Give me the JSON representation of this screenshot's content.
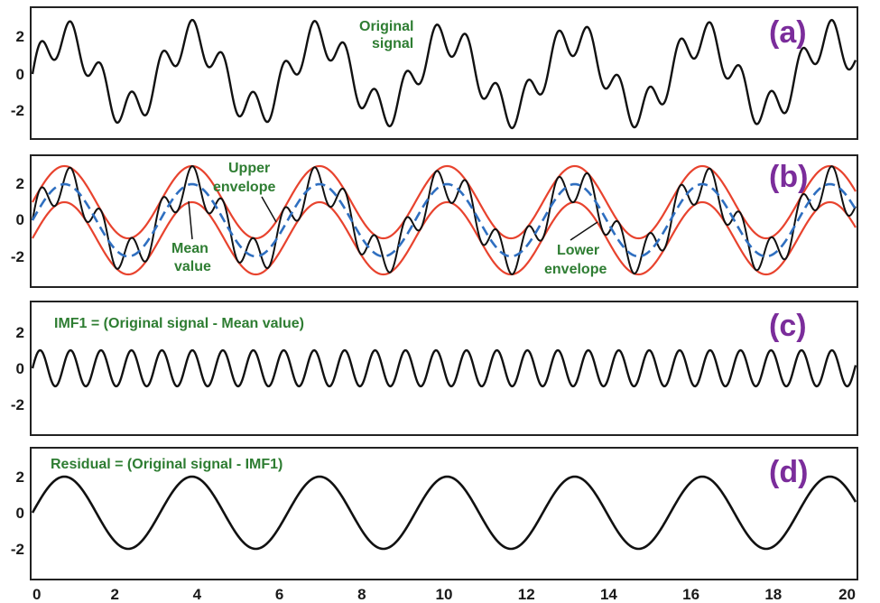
{
  "colors": {
    "signal": "#111111",
    "envelope": "#e8432e",
    "mean": "#2f6fc0",
    "annotation": "#2e7d32",
    "panel_tag": "#7b2d9b",
    "frame": "#222222"
  },
  "chart_data": [
    {
      "type": "line",
      "panel_tag": "(a)",
      "x_range": [
        0,
        20
      ],
      "ylim": [
        -3.2,
        3.3
      ],
      "y_ticks": [
        2,
        0,
        -2
      ],
      "annotations": [
        {
          "id": "orig-1",
          "text": "Original"
        },
        {
          "id": "orig-2",
          "text": "signal"
        }
      ],
      "series": [
        {
          "key": "signal",
          "formula": "2*sin(2*pi*x/3.1)+sin(2*pi*x/0.74)",
          "x_start": 0,
          "x_end": 20,
          "approx_extrema": [
            2.9,
            -2.9
          ]
        }
      ]
    },
    {
      "type": "line",
      "panel_tag": "(b)",
      "x_range": [
        0,
        20
      ],
      "ylim": [
        -3.2,
        3.3
      ],
      "y_ticks": [
        2,
        0,
        -2
      ],
      "annotations": [
        {
          "id": "upper-1",
          "text": "Upper"
        },
        {
          "id": "upper-2",
          "text": "envelope"
        },
        {
          "id": "mean-1",
          "text": "Mean"
        },
        {
          "id": "mean-2",
          "text": "value"
        },
        {
          "id": "lower-1",
          "text": "Lower"
        },
        {
          "id": "lower-2",
          "text": "envelope"
        }
      ],
      "series": [
        {
          "key": "signal",
          "formula": "2*sin(2*pi*x/3.1)+sin(2*pi*x/0.74)"
        },
        {
          "key": "upper_envelope",
          "formula": "2*sin(2*pi*x/3.1)+1",
          "style": "red"
        },
        {
          "key": "lower_envelope",
          "formula": "2*sin(2*pi*x/3.1)-1",
          "style": "red"
        },
        {
          "key": "mean_value",
          "formula": "2*sin(2*pi*x/3.1)",
          "style": "blue-dashed"
        }
      ]
    },
    {
      "type": "line",
      "panel_tag": "(c)",
      "x_range": [
        0,
        20
      ],
      "ylim": [
        -3.2,
        3.3
      ],
      "y_ticks": [
        2,
        0,
        -2
      ],
      "annotations": [
        {
          "id": "imf-eq",
          "text": "IMF1 = (Original signal - Mean value)"
        }
      ],
      "series": [
        {
          "key": "imf1",
          "formula": "sin(2*pi*x/0.74)",
          "amplitude": 1.0
        }
      ]
    },
    {
      "type": "line",
      "panel_tag": "(d)",
      "x_range": [
        0,
        20
      ],
      "ylim": [
        -3.2,
        3.3
      ],
      "y_ticks": [
        2,
        0,
        -2
      ],
      "x_ticks": [
        0,
        2,
        4,
        6,
        8,
        10,
        12,
        14,
        16,
        18,
        20
      ],
      "annotations": [
        {
          "id": "res-eq",
          "text": "Residual = (Original signal - IMF1)"
        }
      ],
      "series": [
        {
          "key": "residual",
          "formula": "2*sin(2*pi*x/3.1)",
          "x_start": 0,
          "x_end": 20
        }
      ]
    }
  ]
}
